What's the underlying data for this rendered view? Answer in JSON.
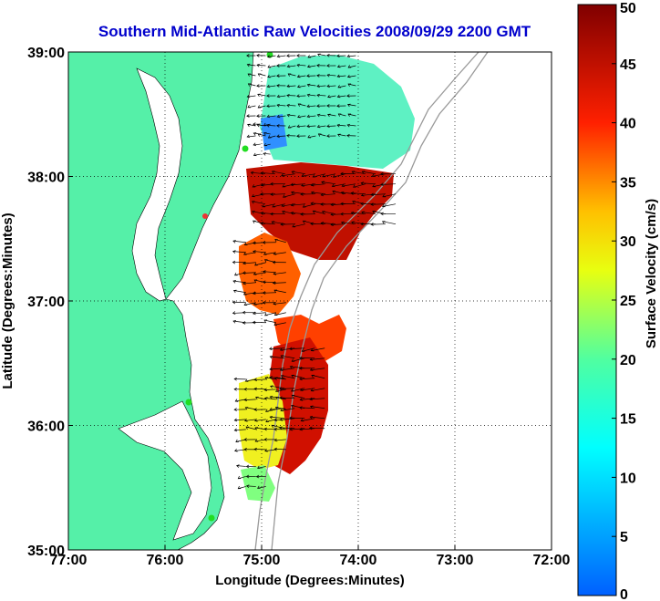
{
  "chart_data": {
    "type": "heatmap",
    "title": "Southern Mid-Atlantic Raw Velocities 2008/09/29 2200 GMT",
    "xlabel": "Longitude (Degrees:Minutes)",
    "ylabel": "Latitude (Degrees:Minutes)",
    "x_ticks": [
      "77:00",
      "76:00",
      "75:00",
      "74:00",
      "73:00",
      "72:00"
    ],
    "x_tick_values": [
      -77,
      -76,
      -75,
      -74,
      -73,
      -72
    ],
    "y_ticks": [
      "39:00",
      "38:00",
      "37:00",
      "36:00",
      "35:00"
    ],
    "y_tick_values": [
      39,
      38,
      37,
      36,
      35
    ],
    "xlim": [
      -77,
      -72
    ],
    "ylim": [
      35,
      39
    ],
    "grid": true,
    "colorbar": {
      "label": "Surface Velocity (cm/s)",
      "range": [
        0,
        50
      ],
      "ticks": [
        "0",
        "5",
        "10",
        "15",
        "20",
        "25",
        "30",
        "35",
        "40",
        "45",
        "50"
      ],
      "tick_values": [
        0,
        5,
        10,
        15,
        20,
        25,
        30,
        35,
        40,
        45,
        50
      ]
    },
    "colors": {
      "land": "#55f0a8",
      "water": "#ffffff",
      "contour": "#999999",
      "station": "#22dd22"
    },
    "velocity_regions": [
      {
        "lon_range": [
          -75.1,
          -74.0
        ],
        "lat_range": [
          38.3,
          39.0
        ],
        "speed_cm_s": 15
      },
      {
        "lon_range": [
          -75.05,
          -74.85
        ],
        "lat_range": [
          38.1,
          38.45
        ],
        "speed_cm_s": 8
      },
      {
        "lon_range": [
          -75.0,
          -73.6
        ],
        "lat_range": [
          37.6,
          38.05
        ],
        "speed_cm_s": 42
      },
      {
        "lon_range": [
          -75.2,
          -74.65
        ],
        "lat_range": [
          36.75,
          37.5
        ],
        "speed_cm_s": 35
      },
      {
        "lon_range": [
          -74.8,
          -74.3
        ],
        "lat_range": [
          35.9,
          36.65
        ],
        "speed_cm_s": 44
      },
      {
        "lon_range": [
          -75.2,
          -74.7
        ],
        "lat_range": [
          35.8,
          36.4
        ],
        "speed_cm_s": 28
      },
      {
        "lon_range": [
          -75.2,
          -74.9
        ],
        "lat_range": [
          35.45,
          35.7
        ],
        "speed_cm_s": 18
      }
    ]
  }
}
